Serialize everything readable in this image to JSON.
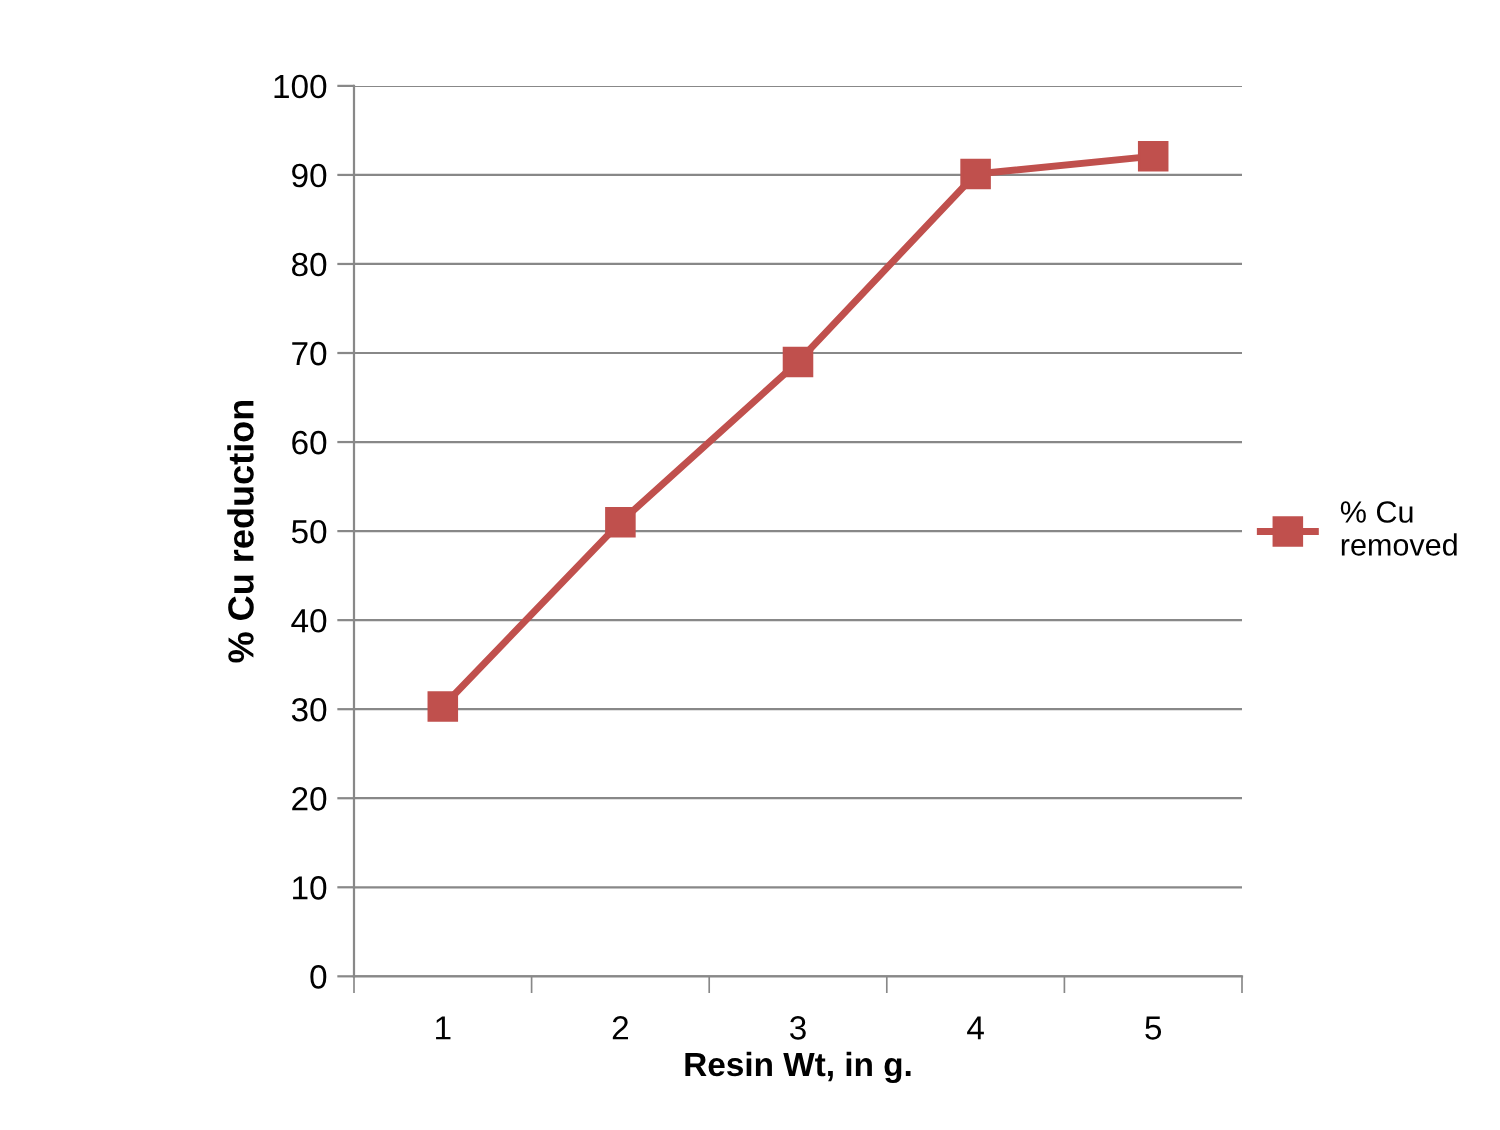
{
  "chart_data": {
    "type": "line",
    "xlabel": "Resin Wt, in g.",
    "ylabel": "% Cu reduction",
    "categories": [
      "1",
      "2",
      "3",
      "4",
      "5"
    ],
    "series": [
      {
        "name": "% Cu removed",
        "color": "#c0504d",
        "values": [
          30.3,
          51,
          69,
          90.1,
          92.1
        ]
      }
    ],
    "ylim": [
      0,
      100
    ],
    "yticks": [
      0,
      10,
      20,
      30,
      40,
      50,
      60,
      70,
      80,
      90,
      100
    ],
    "grid": "y",
    "legend": "right",
    "marker": "square",
    "line_style": "solid"
  }
}
